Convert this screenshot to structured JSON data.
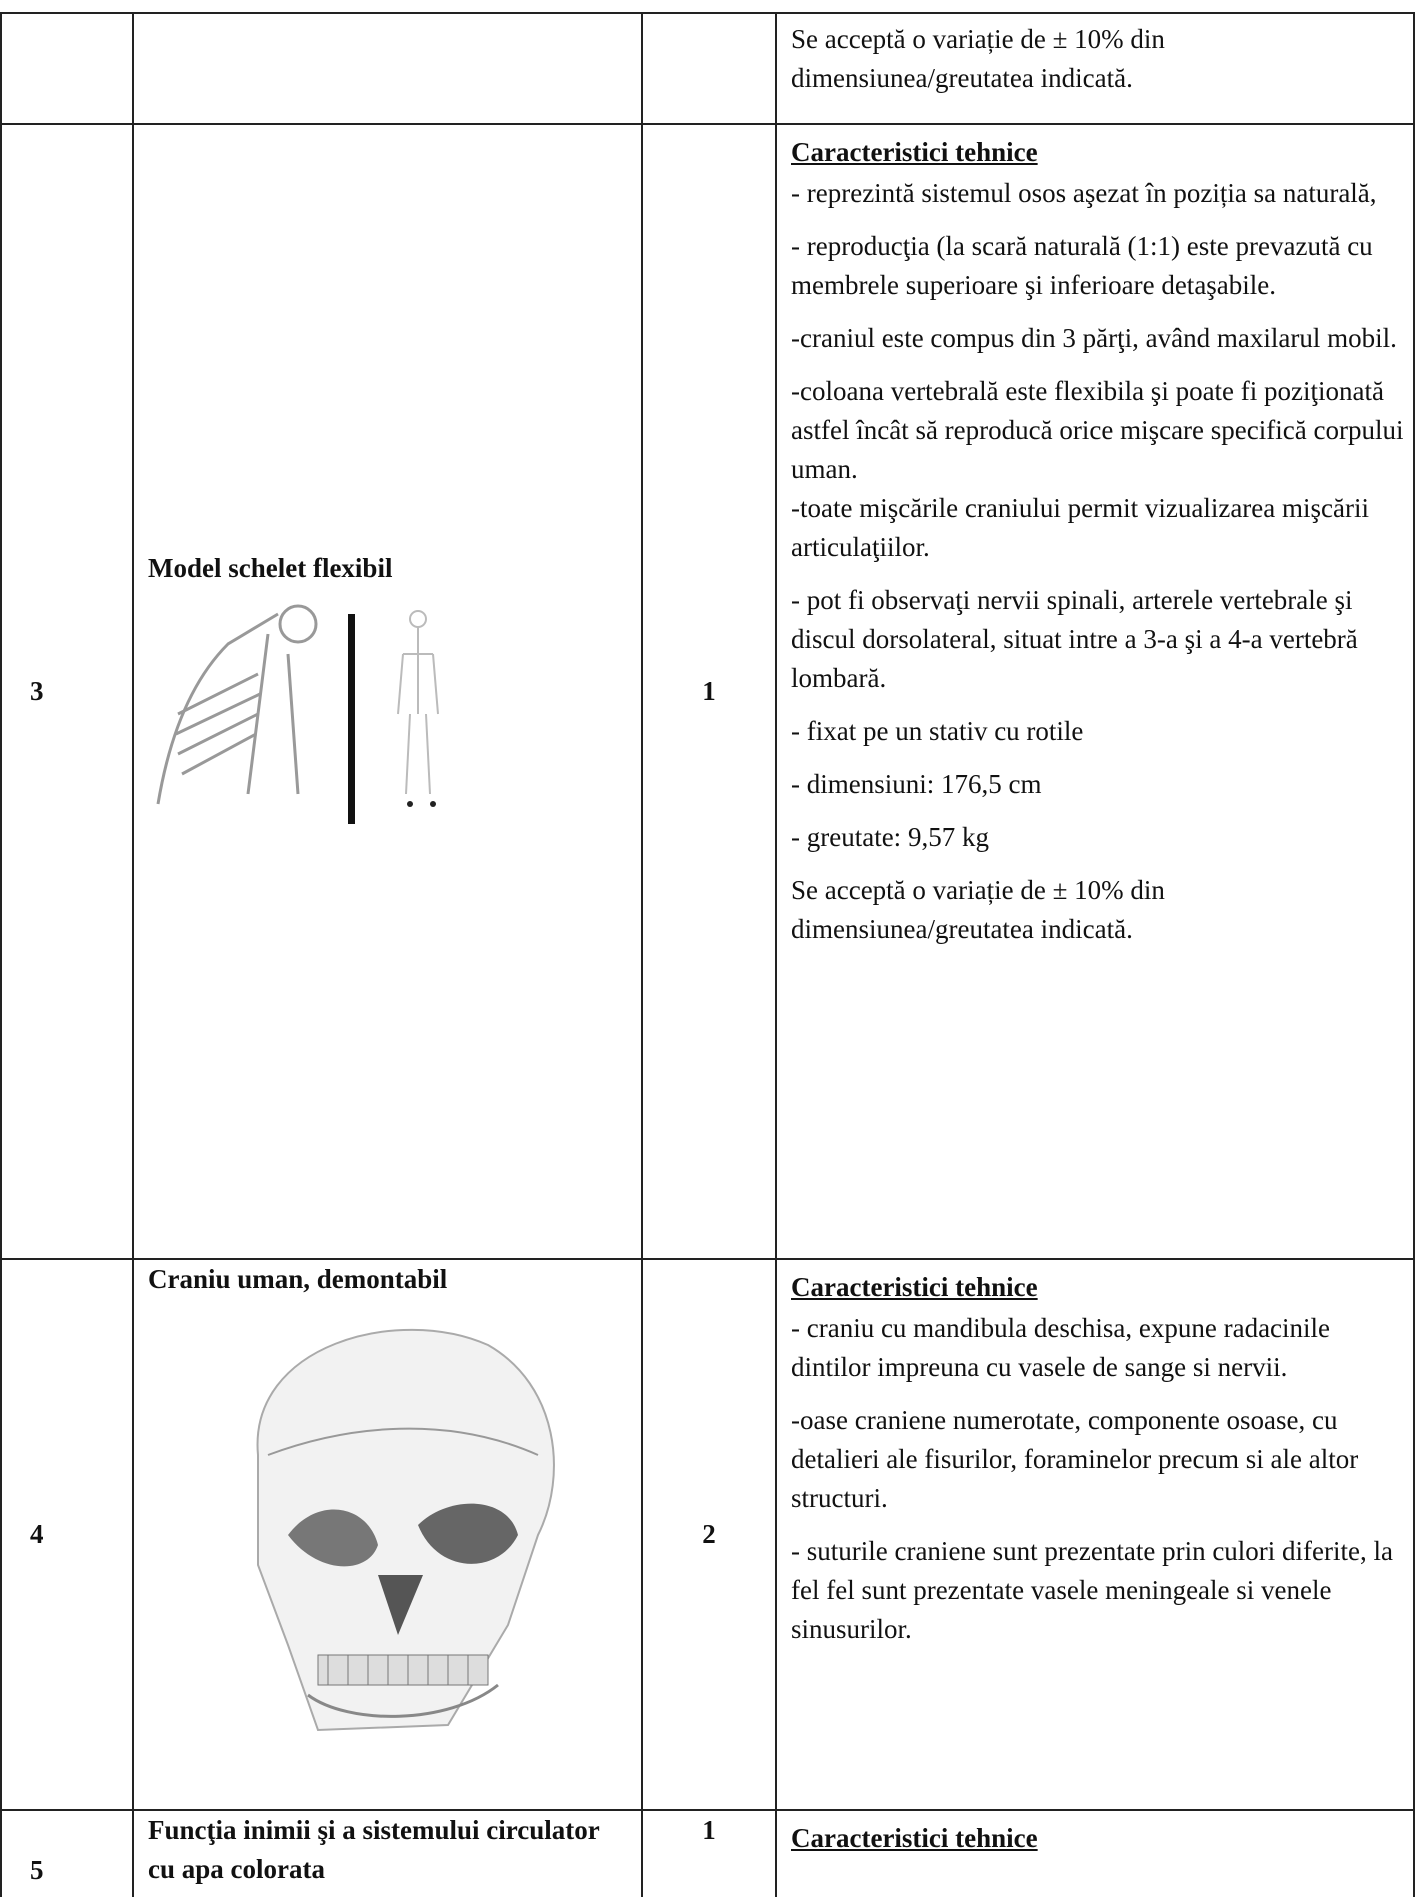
{
  "table": {
    "rows": [
      {
        "description": [
          "Se acceptă o variație de ± 10% din dimensiunea/greutatea indicată."
        ]
      },
      {
        "number": "3",
        "name": "Model schelet flexibil",
        "quantity": "1",
        "heading": "Caracteristici tehnice",
        "description": [
          "- reprezintă sistemul osos aşezat în poziția sa naturală,",
          "- reproducţia (la scară naturală (1:1) este prevazută cu membrele superioare şi inferioare detaşabile.",
          "-craniul este compus din 3 părţi, având maxilarul mobil.",
          "-coloana vertebrală este flexibila şi poate fi poziţionată astfel încât să reproducă orice mişcare specifică corpului uman.",
          "-toate mişcările craniului permit vizualizarea mişcării articulaţiilor.",
          "- pot fi observaţi nervii spinali, arterele vertebrale şi discul dorsolateral, situat intre a 3-a şi a 4-a vertebră lombară.",
          "- fixat pe un stativ cu rotile",
          "- dimensiuni: 176,5 cm",
          "- greutate: 9,57 kg",
          "Se acceptă o variație de ± 10% din dimensiunea/greutatea indicată."
        ]
      },
      {
        "number": "4",
        "name": "Craniu uman, demontabil",
        "quantity": "2",
        "heading": "Caracteristici tehnice",
        "description": [
          "- craniu cu mandibula deschisa, expune radacinile dintilor impreuna cu vasele de sange si nervii.",
          "-oase craniene numerotate, componente osoase, cu detalieri ale fisurilor, foraminelor precum  si ale altor structuri.",
          "- suturile craniene sunt prezentate prin culori diferite, la fel fel sunt prezentate vasele meningeale si venele sinusurilor."
        ]
      },
      {
        "number": "5",
        "name": "Funcţia inimii şi a sistemului circulator cu apa colorata",
        "quantity": "1",
        "heading": "Caracteristici tehnice"
      }
    ]
  }
}
